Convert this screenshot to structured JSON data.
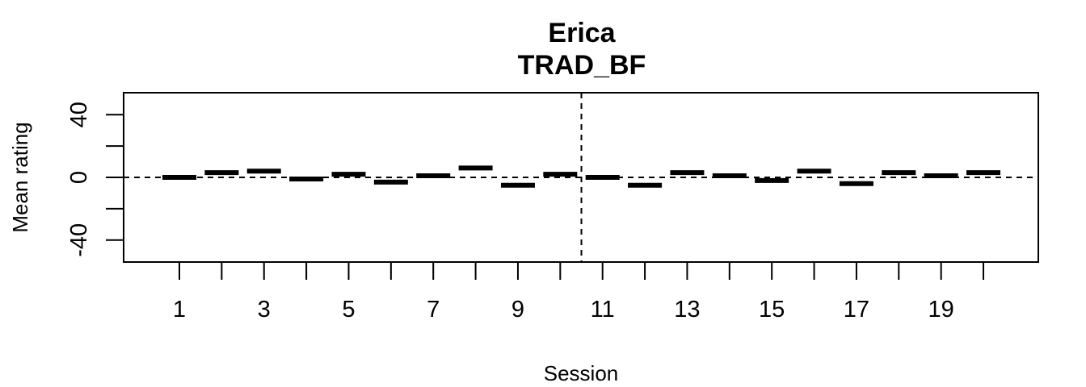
{
  "chart_data": {
    "type": "bar",
    "title": "Erica",
    "subtitle": "TRAD_BF",
    "xlabel": "Session",
    "ylabel": "Mean rating",
    "x": [
      1,
      2,
      3,
      4,
      5,
      6,
      7,
      8,
      9,
      10,
      11,
      12,
      13,
      14,
      15,
      16,
      17,
      18,
      19,
      20
    ],
    "values": [
      0,
      3,
      4,
      -1,
      2,
      -3,
      1,
      6,
      -5,
      2,
      0,
      -5,
      3,
      1,
      -2,
      4,
      -4,
      3,
      1,
      3
    ],
    "x_tick_labels": [
      "1",
      "3",
      "5",
      "7",
      "9",
      "11",
      "13",
      "15",
      "17",
      "19"
    ],
    "y_tick_labels": [
      "-40",
      "0",
      "40"
    ],
    "ylim": [
      -54,
      54
    ],
    "y_major_ticks": [
      -40,
      0,
      40
    ],
    "y_all_ticks": [
      -40,
      -20,
      0,
      20,
      40
    ],
    "reference_lines": {
      "horizontal_y": 0,
      "vertical_between_sessions": [
        10,
        11
      ]
    },
    "grid": false,
    "legend": "none",
    "colors": {
      "marks": "#000000",
      "axis": "#000000",
      "background": "#ffffff"
    }
  }
}
